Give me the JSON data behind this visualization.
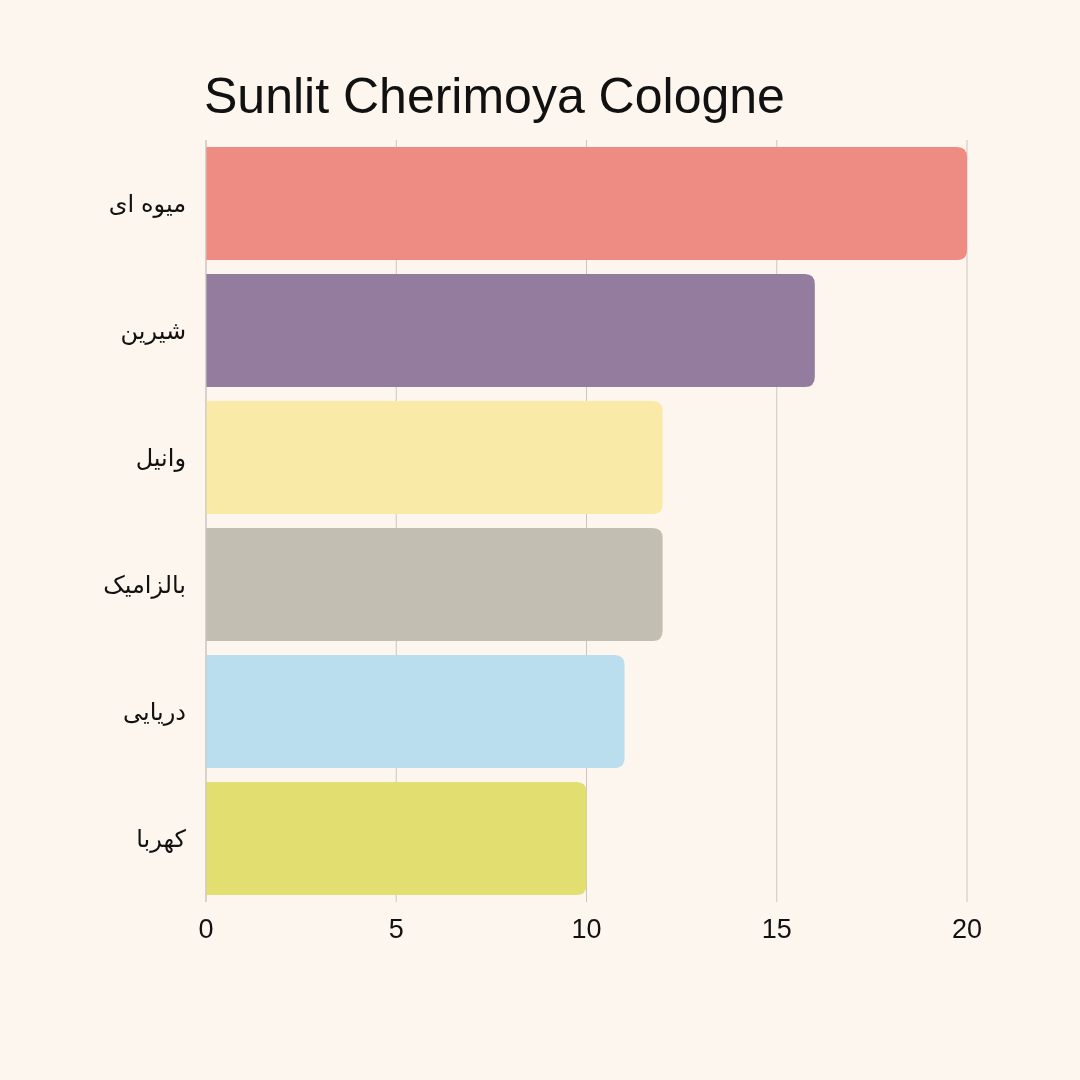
{
  "chart_data": {
    "type": "bar",
    "orientation": "horizontal",
    "title": "Sunlit Cherimoya Cologne",
    "categories": [
      "میوه ای",
      "شیرین",
      "وانیل",
      "بالزامیک",
      "دریایی",
      "کهربا"
    ],
    "values": [
      20,
      16,
      12,
      12,
      11,
      10
    ],
    "colors": [
      "#ee8c84",
      "#937c9e",
      "#faeaa8",
      "#c2beb2",
      "#badeed",
      "#e2df70"
    ],
    "xlim": [
      0,
      20
    ],
    "xticks": [
      0,
      5,
      10,
      15,
      20
    ],
    "grid": "x"
  }
}
